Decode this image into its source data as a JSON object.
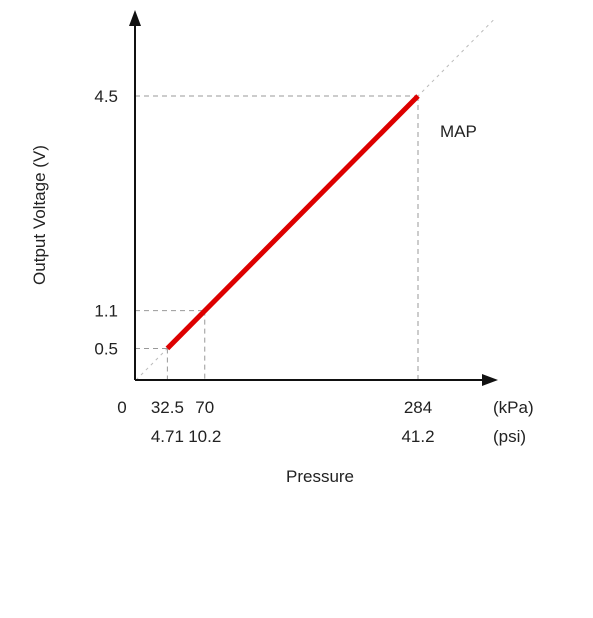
{
  "chart_data": {
    "type": "line",
    "title": "",
    "xlabel": "Pressure",
    "ylabel": "Output Voltage (V)",
    "origin_label": "0",
    "x_unit_labels": [
      "(kPa)",
      "(psi)"
    ],
    "x_ticks": [
      {
        "kpa": "32.5",
        "psi": "4.71",
        "value": 32.5
      },
      {
        "kpa": "70",
        "psi": "10.2",
        "value": 70
      },
      {
        "kpa": "284",
        "psi": "41.2",
        "value": 284
      }
    ],
    "y_ticks": [
      {
        "label": "0.5",
        "value": 0.5
      },
      {
        "label": "1.1",
        "value": 1.1
      },
      {
        "label": "4.5",
        "value": 4.5
      }
    ],
    "series": [
      {
        "name": "MAP",
        "color": "#dd0000",
        "x": [
          32.5,
          284
        ],
        "y": [
          0.5,
          4.5
        ]
      }
    ],
    "xlim": [
      0,
      370
    ],
    "ylim": [
      0,
      5.0
    ],
    "grid": false,
    "reference_lines": "dashed guides from each labeled point to both axes; dotted diagonal extension of the transfer line"
  }
}
